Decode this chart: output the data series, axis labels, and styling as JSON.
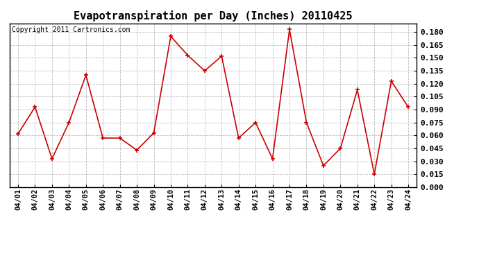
{
  "title": "Evapotranspiration per Day (Inches) 20110425",
  "copyright_text": "Copyright 2011 Cartronics.com",
  "dates": [
    "04/01",
    "04/02",
    "04/03",
    "04/04",
    "04/05",
    "04/06",
    "04/07",
    "04/08",
    "04/09",
    "04/10",
    "04/11",
    "04/12",
    "04/13",
    "04/14",
    "04/15",
    "04/16",
    "04/17",
    "04/18",
    "04/19",
    "04/20",
    "04/21",
    "04/22",
    "04/23",
    "04/24"
  ],
  "values": [
    0.062,
    0.093,
    0.033,
    0.075,
    0.13,
    0.057,
    0.057,
    0.043,
    0.063,
    0.175,
    0.153,
    0.135,
    0.152,
    0.057,
    0.075,
    0.033,
    0.183,
    0.075,
    0.025,
    0.045,
    0.113,
    0.015,
    0.123,
    0.093
  ],
  "line_color": "#cc0000",
  "marker": "+",
  "marker_size": 5,
  "line_width": 1.2,
  "ylim": [
    0.0,
    0.19
  ],
  "yticks": [
    0.0,
    0.015,
    0.03,
    0.045,
    0.06,
    0.075,
    0.09,
    0.105,
    0.12,
    0.135,
    0.15,
    0.165,
    0.18
  ],
  "bg_color": "#ffffff",
  "grid_color": "#bbbbbb",
  "title_fontsize": 11,
  "copyright_fontsize": 7,
  "tick_fontsize": 7.5,
  "ytick_fontsize": 8
}
